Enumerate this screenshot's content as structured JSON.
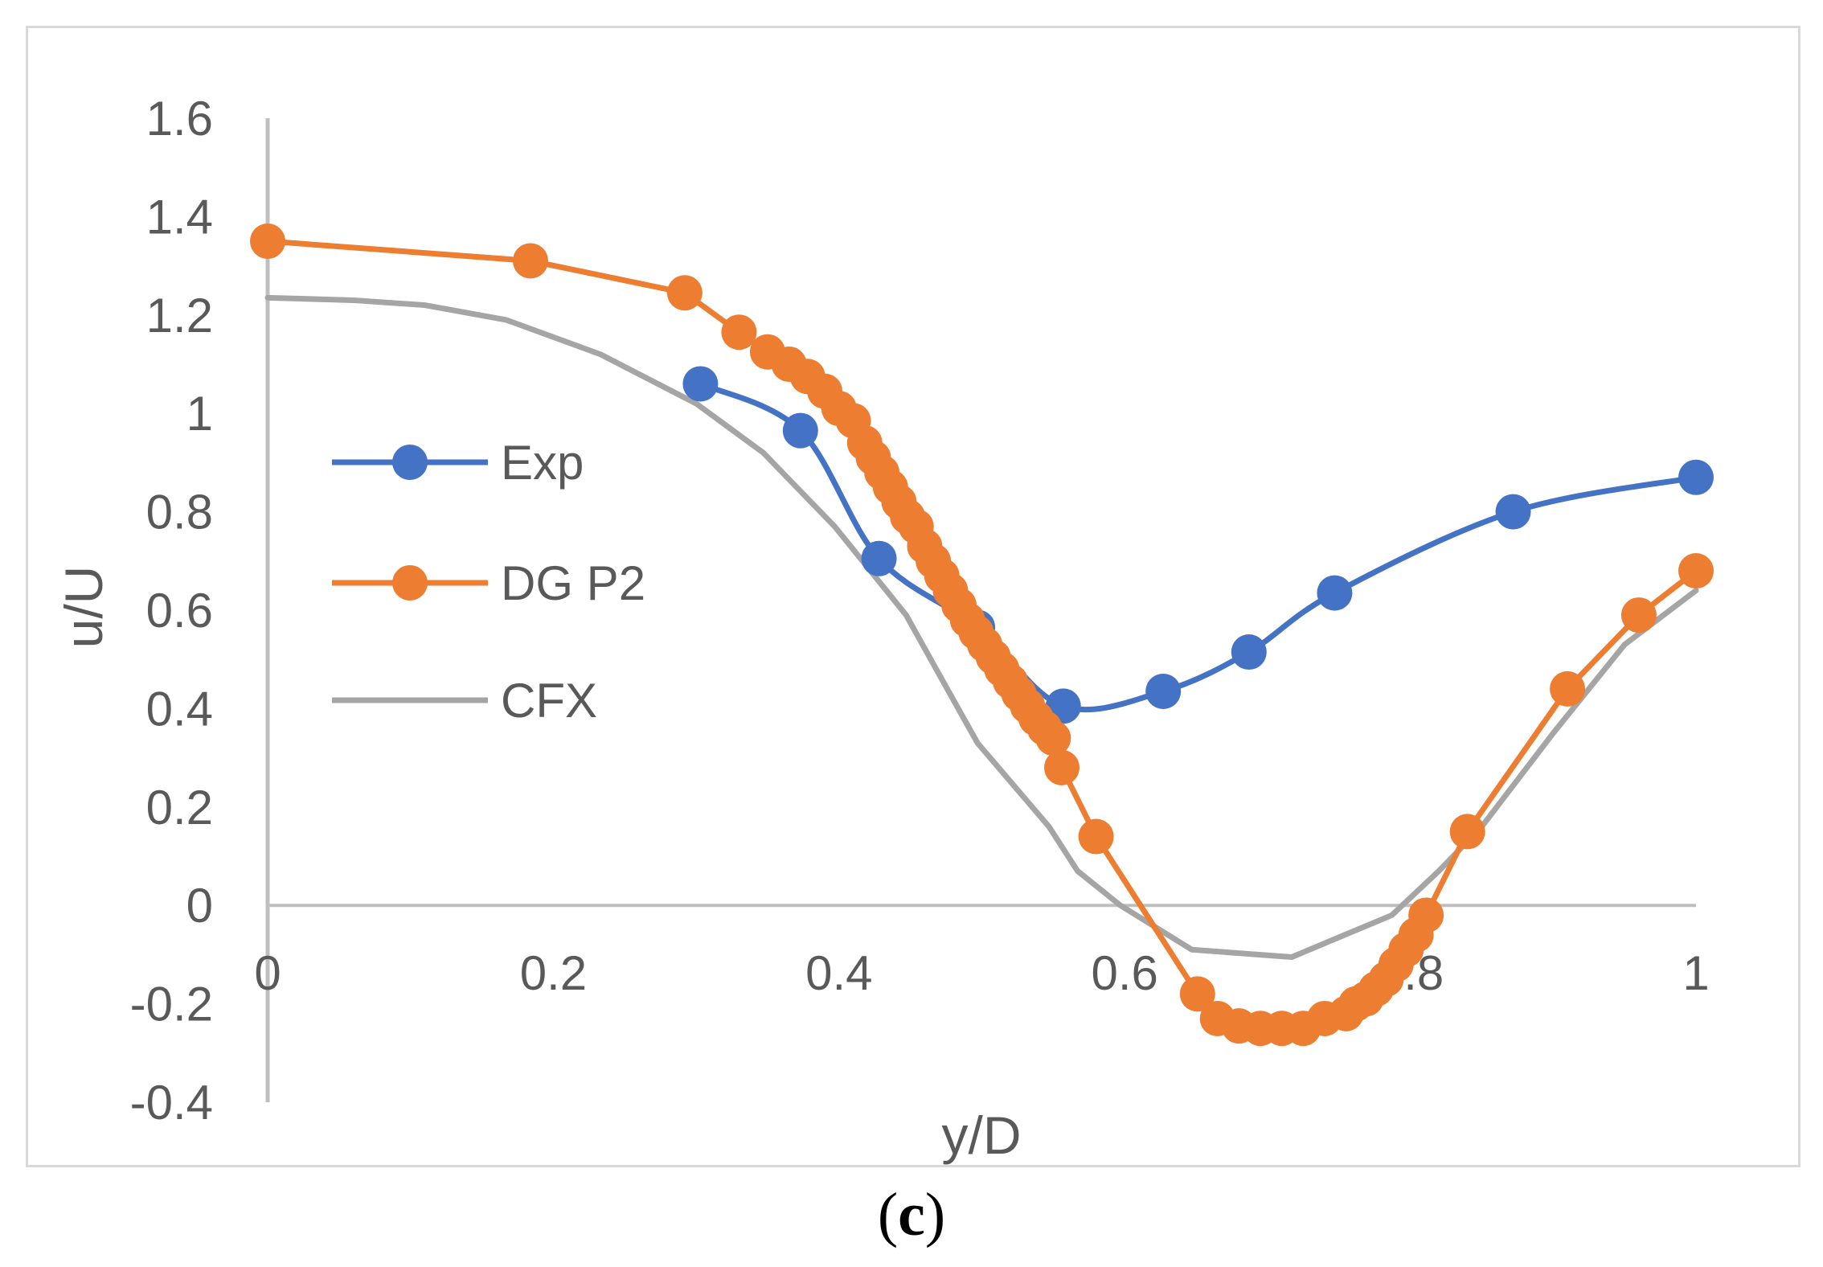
{
  "chart_data": {
    "type": "line",
    "title": "",
    "xlabel": "y/D",
    "ylabel": "u/U",
    "xlim": [
      0,
      1
    ],
    "ylim": [
      -0.4,
      1.6
    ],
    "x_ticks": [
      0,
      0.2,
      0.4,
      0.6,
      0.8,
      1
    ],
    "x_tick_labels": [
      "0",
      "0.2",
      "0.4",
      "0.6",
      "0.8",
      "1"
    ],
    "y_ticks": [
      -0.4,
      -0.2,
      0,
      0.2,
      0.4,
      0.6,
      0.8,
      1,
      1.2,
      1.4,
      1.6
    ],
    "y_tick_labels": [
      "-0.4",
      "-0.2",
      "0",
      "0.2",
      "0.4",
      "0.6",
      "0.8",
      "1",
      "1.2",
      "1.4",
      "1.6"
    ],
    "grid": false,
    "legend_position": "left-middle",
    "series": [
      {
        "name": "Exp",
        "color": "#4472c4",
        "marker": "circle",
        "smooth": true,
        "x": [
          0.303,
          0.373,
          0.428,
          0.497,
          0.557,
          0.627,
          0.687,
          0.747,
          0.872,
          1.0
        ],
        "y": [
          1.06,
          0.965,
          0.705,
          0.565,
          0.405,
          0.435,
          0.515,
          0.635,
          0.8,
          0.87
        ]
      },
      {
        "name": "DG P2",
        "color": "#ed7d31",
        "marker": "circle",
        "smooth": false,
        "x": [
          0.0,
          0.184,
          0.292,
          0.33,
          0.35,
          0.365,
          0.378,
          0.39,
          0.4,
          0.41,
          0.418,
          0.424,
          0.43,
          0.436,
          0.442,
          0.448,
          0.454,
          0.46,
          0.466,
          0.472,
          0.478,
          0.484,
          0.49,
          0.496,
          0.502,
          0.508,
          0.514,
          0.52,
          0.526,
          0.532,
          0.538,
          0.544,
          0.55,
          0.556,
          0.58,
          0.651,
          0.665,
          0.68,
          0.695,
          0.71,
          0.725,
          0.74,
          0.755,
          0.762,
          0.769,
          0.776,
          0.783,
          0.79,
          0.797,
          0.804,
          0.811,
          0.84,
          0.91,
          0.96,
          1.0
        ],
        "y": [
          1.35,
          1.31,
          1.245,
          1.165,
          1.125,
          1.1,
          1.075,
          1.045,
          1.01,
          0.985,
          0.94,
          0.91,
          0.88,
          0.85,
          0.82,
          0.79,
          0.77,
          0.73,
          0.7,
          0.67,
          0.64,
          0.61,
          0.58,
          0.555,
          0.53,
          0.505,
          0.48,
          0.455,
          0.43,
          0.405,
          0.38,
          0.36,
          0.34,
          0.28,
          0.14,
          -0.18,
          -0.23,
          -0.245,
          -0.25,
          -0.25,
          -0.25,
          -0.23,
          -0.22,
          -0.2,
          -0.19,
          -0.17,
          -0.15,
          -0.12,
          -0.09,
          -0.06,
          -0.02,
          0.15,
          0.44,
          0.59,
          0.68
        ]
      },
      {
        "name": "CFX",
        "color": "#a5a5a5",
        "marker": "none",
        "smooth": false,
        "x": [
          0.0,
          0.06,
          0.11,
          0.167,
          0.233,
          0.3,
          0.347,
          0.367,
          0.397,
          0.447,
          0.47,
          0.497,
          0.547,
          0.567,
          0.597,
          0.647,
          0.717,
          0.787,
          0.82,
          0.85,
          0.9,
          0.95,
          1.0
        ],
        "y": [
          1.235,
          1.23,
          1.22,
          1.19,
          1.12,
          1.02,
          0.92,
          0.86,
          0.77,
          0.59,
          0.47,
          0.33,
          0.16,
          0.07,
          0.0,
          -0.09,
          -0.105,
          -0.02,
          0.07,
          0.16,
          0.35,
          0.53,
          0.64
        ]
      }
    ]
  },
  "caption": {
    "open": "(",
    "letter": "c",
    "close": ")"
  }
}
